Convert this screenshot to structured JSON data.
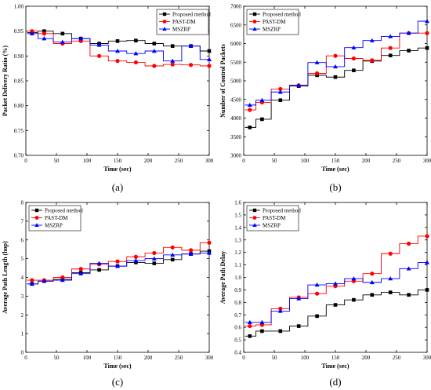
{
  "chart_data": [
    {
      "type": "line",
      "panel_label": "(a)",
      "xlabel": "Time (sec)",
      "ylabel": "Packet Delivery Ratio (%)",
      "xlim": [
        0,
        300
      ],
      "ylim": [
        0.7,
        1.0
      ],
      "xticks": [
        0,
        50,
        100,
        150,
        200,
        250,
        300
      ],
      "yticks": [
        0.7,
        0.75,
        0.8,
        0.85,
        0.9,
        0.95,
        1.0
      ],
      "ytick_labels": [
        "0.70",
        "0.75",
        "0.80",
        "0.85",
        "0.90",
        "0.95",
        "1.00"
      ],
      "legend_position": "top-right",
      "x": [
        10,
        30,
        60,
        90,
        120,
        150,
        180,
        210,
        240,
        270,
        300
      ],
      "series": [
        {
          "name": "Proposed method",
          "color": "#000000",
          "marker": "square",
          "values": [
            0.947,
            0.95,
            0.945,
            0.935,
            0.925,
            0.93,
            0.931,
            0.925,
            0.92,
            0.92,
            0.91
          ]
        },
        {
          "name": "PAST-DM",
          "color": "#ff0000",
          "marker": "circle",
          "values": [
            0.95,
            0.945,
            0.925,
            0.93,
            0.9,
            0.89,
            0.887,
            0.88,
            0.883,
            0.882,
            0.88
          ]
        },
        {
          "name": "MSZRP",
          "color": "#0000ff",
          "marker": "triangle",
          "values": [
            0.945,
            0.935,
            0.928,
            0.935,
            0.922,
            0.91,
            0.905,
            0.91,
            0.89,
            0.92,
            0.893
          ]
        }
      ]
    },
    {
      "type": "line",
      "panel_label": "(b)",
      "xlabel": "Time (sec)",
      "ylabel": "Number of Control Packets",
      "xlim": [
        0,
        300
      ],
      "ylim": [
        3000,
        7000
      ],
      "xticks": [
        0,
        50,
        100,
        150,
        200,
        250,
        300
      ],
      "yticks": [
        3000,
        3500,
        4000,
        4500,
        5000,
        5500,
        6000,
        6500,
        7000
      ],
      "ytick_labels": [
        "3000",
        "3500",
        "4000",
        "4500",
        "5000",
        "5500",
        "6000",
        "6500",
        "7000"
      ],
      "legend_position": "top-left",
      "x": [
        10,
        30,
        60,
        90,
        120,
        150,
        180,
        210,
        240,
        270,
        300
      ],
      "series": [
        {
          "name": "Proposed method",
          "color": "#000000",
          "marker": "square",
          "values": [
            3750,
            3970,
            4480,
            4860,
            5150,
            5100,
            5280,
            5530,
            5680,
            5810,
            5880
          ]
        },
        {
          "name": "PAST-DM",
          "color": "#ff0000",
          "marker": "circle",
          "values": [
            4220,
            4420,
            4780,
            4880,
            5200,
            5670,
            5600,
            5550,
            5880,
            6280,
            6280
          ]
        },
        {
          "name": "MSZRP",
          "color": "#0000ff",
          "marker": "triangle",
          "values": [
            4350,
            4480,
            4700,
            4880,
            5490,
            5380,
            5890,
            6080,
            6190,
            6280,
            6600
          ]
        }
      ]
    },
    {
      "type": "line",
      "panel_label": "(c)",
      "xlabel": "Time (sec)",
      "ylabel": "Average Path Length (hop)",
      "xlim": [
        0,
        300
      ],
      "ylim": [
        0,
        8
      ],
      "xticks": [
        0,
        50,
        100,
        150,
        200,
        250,
        300
      ],
      "yticks": [
        0,
        1,
        2,
        3,
        4,
        5,
        6,
        7,
        8
      ],
      "ytick_labels": [
        "0",
        "1",
        "2",
        "3",
        "4",
        "5",
        "6",
        "7",
        "8"
      ],
      "legend_position": "top-left",
      "x": [
        10,
        30,
        60,
        90,
        120,
        150,
        180,
        210,
        240,
        270,
        300
      ],
      "series": [
        {
          "name": "Proposed method",
          "color": "#000000",
          "marker": "square",
          "values": [
            3.65,
            3.8,
            3.9,
            4.25,
            4.4,
            4.6,
            4.8,
            4.75,
            4.95,
            5.25,
            5.4
          ]
        },
        {
          "name": "PAST-DM",
          "color": "#ff0000",
          "marker": "circle",
          "values": [
            3.85,
            3.85,
            4.0,
            4.45,
            4.7,
            4.85,
            5.1,
            5.3,
            5.6,
            5.45,
            5.85
          ]
        },
        {
          "name": "MSZRP",
          "color": "#0000ff",
          "marker": "triangle",
          "values": [
            3.65,
            3.8,
            3.85,
            4.2,
            4.75,
            4.6,
            4.9,
            5.0,
            5.2,
            5.25,
            5.3
          ]
        }
      ]
    },
    {
      "type": "line",
      "panel_label": "(d)",
      "xlabel": "Time (sec)",
      "ylabel": "Average Path Delay",
      "xlim": [
        0,
        300
      ],
      "ylim": [
        0.4,
        1.6
      ],
      "xticks": [
        0,
        50,
        100,
        150,
        200,
        250,
        300
      ],
      "yticks": [
        0.4,
        0.5,
        0.6,
        0.7,
        0.8,
        0.9,
        1.0,
        1.1,
        1.2,
        1.3,
        1.4,
        1.5,
        1.6
      ],
      "ytick_labels": [
        "0.4",
        "0.5",
        "0.6",
        "0.7",
        "0.8",
        "0.9",
        "1.0",
        "1.1",
        "1.2",
        "1.3",
        "1.4",
        "1.5",
        "1.6"
      ],
      "legend_position": "top-left",
      "x": [
        10,
        30,
        60,
        90,
        120,
        150,
        180,
        210,
        240,
        270,
        300
      ],
      "series": [
        {
          "name": "Proposed method",
          "color": "#000000",
          "marker": "square",
          "values": [
            0.53,
            0.57,
            0.57,
            0.61,
            0.69,
            0.78,
            0.82,
            0.86,
            0.88,
            0.86,
            0.9
          ]
        },
        {
          "name": "PAST-DM",
          "color": "#ff0000",
          "marker": "circle",
          "values": [
            0.61,
            0.62,
            0.75,
            0.84,
            0.87,
            0.93,
            0.97,
            1.03,
            1.19,
            1.27,
            1.33
          ]
        },
        {
          "name": "MSZRP",
          "color": "#0000ff",
          "marker": "triangle",
          "values": [
            0.64,
            0.64,
            0.73,
            0.83,
            0.94,
            0.95,
            0.99,
            0.96,
            0.99,
            1.07,
            1.12
          ]
        }
      ]
    }
  ]
}
